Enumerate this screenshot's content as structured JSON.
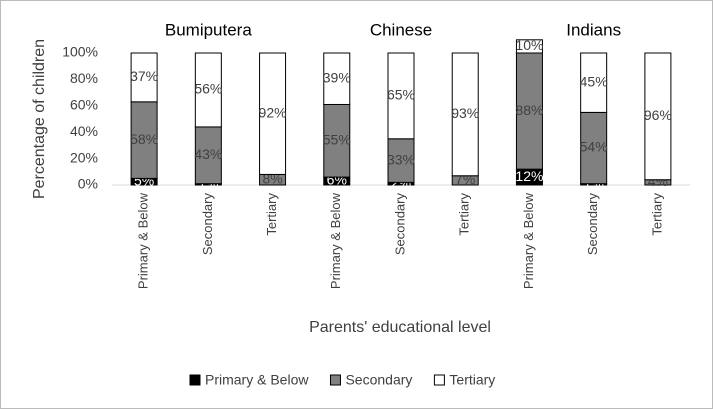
{
  "chart_data": {
    "type": "stacked_bar",
    "groups": [
      "Bumiputera",
      "Chinese",
      "Indians"
    ],
    "categories": [
      "Primary & Below",
      "Secondary",
      "Tertiary",
      "Primary & Below",
      "Secondary",
      "Tertiary",
      "Primary & Below",
      "Secondary",
      "Tertiary"
    ],
    "xlabel": "Parents' educational level",
    "ylabel": "Percentage of children",
    "ylim": [
      0,
      100
    ],
    "yticks": [
      {
        "value": 0,
        "label": "0%"
      },
      {
        "value": 20,
        "label": "20%"
      },
      {
        "value": 40,
        "label": "40%"
      },
      {
        "value": 60,
        "label": "60%"
      },
      {
        "value": 80,
        "label": "80%"
      },
      {
        "value": 100,
        "label": "100%"
      }
    ],
    "legend": "bottom",
    "series": [
      {
        "name": "Primary & Below",
        "color": "#000000",
        "values": [
          5,
          1,
          0,
          6,
          2,
          0,
          12,
          1,
          0
        ],
        "value_labels": [
          "5%",
          "1%",
          null,
          "6%",
          "2%",
          null,
          "12%",
          "1%",
          null
        ]
      },
      {
        "name": "Secondary",
        "color": "#808080",
        "values": [
          58,
          43,
          8,
          55,
          33,
          7,
          88,
          54,
          4
        ],
        "value_labels": [
          "58%",
          "43%",
          "8%",
          "55%",
          "33%",
          "7%",
          "88%",
          "54%",
          "4%"
        ]
      },
      {
        "name": "Tertiary",
        "color": "#ffffff",
        "values": [
          37,
          56,
          92,
          39,
          65,
          93,
          10,
          45,
          96
        ],
        "value_labels": [
          "37%",
          "56%",
          "92%",
          "39%",
          "65%",
          "93%",
          "10%",
          "45%",
          "96%"
        ]
      }
    ]
  }
}
